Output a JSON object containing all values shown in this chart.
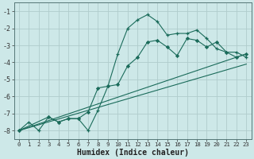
{
  "xlabel": "Humidex (Indice chaleur)",
  "background_color": "#cde8e8",
  "grid_color": "#b0cccc",
  "line_color": "#1a6b5a",
  "xlim": [
    -0.5,
    23.5
  ],
  "ylim": [
    -8.5,
    -0.5
  ],
  "yticks": [
    -8,
    -7,
    -6,
    -5,
    -4,
    -3,
    -2,
    -1
  ],
  "xticks": [
    0,
    1,
    2,
    3,
    4,
    5,
    6,
    7,
    8,
    9,
    10,
    11,
    12,
    13,
    14,
    15,
    16,
    17,
    18,
    19,
    20,
    21,
    22,
    23
  ],
  "series1_x": [
    0,
    1,
    2,
    3,
    4,
    5,
    6,
    7,
    8,
    9,
    10,
    11,
    12,
    13,
    14,
    15,
    16,
    17,
    18,
    19,
    20,
    21,
    22,
    23
  ],
  "series1_y": [
    -8.0,
    -7.5,
    -8.0,
    -7.2,
    -7.5,
    -7.3,
    -7.3,
    -8.0,
    -6.8,
    -5.4,
    -3.5,
    -2.0,
    -1.5,
    -1.2,
    -1.6,
    -2.4,
    -2.3,
    -2.3,
    -2.1,
    -2.6,
    -3.2,
    -3.4,
    -3.4,
    -3.7
  ],
  "series2_x": [
    0,
    3,
    4,
    5,
    6,
    7,
    8,
    9,
    10,
    11,
    12,
    13,
    14,
    15,
    16,
    17,
    18,
    19,
    20,
    21,
    22,
    23
  ],
  "series2_y": [
    -8.0,
    -7.2,
    -7.5,
    -7.3,
    -7.3,
    -6.9,
    -5.5,
    -5.4,
    -5.3,
    -4.2,
    -3.7,
    -2.8,
    -2.7,
    -3.1,
    -3.6,
    -2.6,
    -2.7,
    -3.1,
    -2.8,
    -3.4,
    -3.7,
    -3.5
  ],
  "line1_x": [
    0,
    23
  ],
  "line1_y": [
    -8.0,
    -3.5
  ],
  "line2_x": [
    0,
    23
  ],
  "line2_y": [
    -8.0,
    -4.1
  ]
}
